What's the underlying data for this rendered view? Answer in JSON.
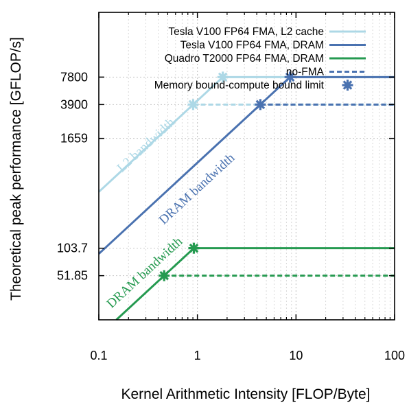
{
  "chart_data": {
    "type": "line",
    "xlabel": "Kernel Arithmetic Intensity [FLOP/Byte]",
    "ylabel": "Theoretical peak performance [GFLOP/s]",
    "x_scale": "log",
    "y_scale": "log",
    "xlim": [
      0.1,
      100
    ],
    "ylim": [
      17,
      40000
    ],
    "x_ticks": [
      0.1,
      1,
      10,
      100
    ],
    "x_tick_labels": [
      "0.1",
      "1",
      "10",
      "100"
    ],
    "y_ticks": [
      51.85,
      103.7,
      1659,
      3900,
      7800
    ],
    "y_tick_labels": [
      "51.85",
      "103.7",
      "1659",
      "3900",
      "7800"
    ],
    "grid": true,
    "legend_position": "top-right",
    "series": [
      {
        "name": "Tesla V100 FP64 FMA, L2 cache",
        "color": "#add8e6",
        "style": "solid",
        "x": [
          0.1,
          1.81,
          100
        ],
        "y": [
          430,
          7800,
          7800
        ]
      },
      {
        "name": "Tesla V100 FP64 FMA, DRAM",
        "color": "#4a72b0",
        "style": "solid",
        "x": [
          0.1,
          8.7,
          100
        ],
        "y": [
          90,
          7800,
          7800
        ]
      },
      {
        "name": "Quadro T2000 FP64 FMA, DRAM",
        "color": "#259a50",
        "style": "solid",
        "x": [
          0.1,
          0.92,
          100
        ],
        "y": [
          11.3,
          103.7,
          103.7
        ]
      },
      {
        "name": "no-FMA",
        "color": "#4a72b0",
        "style": "dashed",
        "segments": [
          {
            "color": "#add8e6",
            "x": [
              0.905,
              100
            ],
            "y": [
              3900,
              3900
            ]
          },
          {
            "color": "#4a72b0",
            "x": [
              4.35,
              100
            ],
            "y": [
              3900,
              3900
            ]
          },
          {
            "color": "#259a50",
            "x": [
              0.46,
              100
            ],
            "y": [
              51.85,
              51.85
            ]
          }
        ]
      },
      {
        "name": "Memory bound-compute bound limit",
        "type": "marker",
        "marker": "asterisk",
        "color": "#4a72b0",
        "points": [
          {
            "x": 1.81,
            "y": 7800,
            "color": "#add8e6"
          },
          {
            "x": 0.905,
            "y": 3900,
            "color": "#add8e6"
          },
          {
            "x": 8.7,
            "y": 7800,
            "color": "#4a72b0"
          },
          {
            "x": 4.35,
            "y": 3900,
            "color": "#4a72b0"
          },
          {
            "x": 0.92,
            "y": 103.7,
            "color": "#259a50"
          },
          {
            "x": 0.46,
            "y": 51.85,
            "color": "#259a50"
          }
        ]
      }
    ],
    "annotations": [
      {
        "text": "L2 bandwidth",
        "color": "#add8e6",
        "x": 0.32,
        "y": 1300
      },
      {
        "text": "DRAM bandwidth",
        "color": "#4a72b0",
        "x": 1.05,
        "y": 430
      },
      {
        "text": "DRAM bandwidth",
        "color": "#259a50",
        "x": 0.31,
        "y": 52
      }
    ]
  }
}
